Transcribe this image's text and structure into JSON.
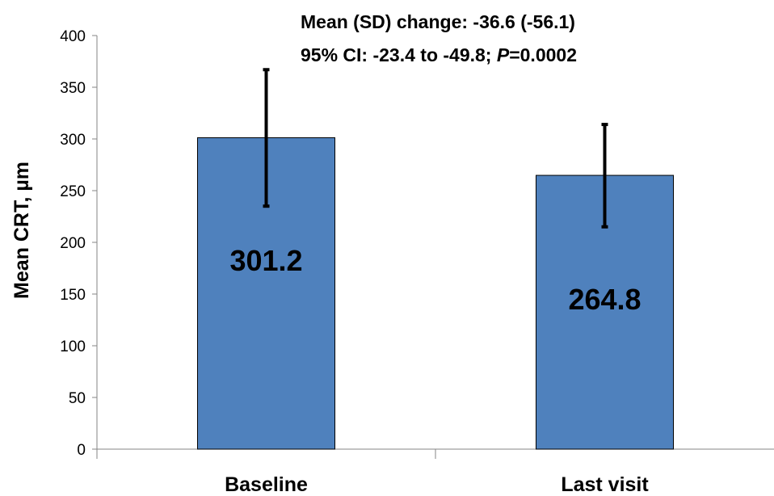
{
  "chart_data": {
    "type": "bar",
    "categories": [
      "Baseline",
      "Last visit"
    ],
    "values": [
      301.2,
      264.8
    ],
    "data_labels": [
      "301.2",
      "264.8"
    ],
    "error_bars": [
      {
        "low": 235,
        "high": 367
      },
      {
        "low": 215,
        "high": 314
      }
    ],
    "ylabel": "Mean CRT, µm",
    "xlabel": "",
    "ylim": [
      0,
      400
    ],
    "yticks": [
      0,
      50,
      100,
      150,
      200,
      250,
      300,
      350,
      400
    ],
    "grid": false,
    "legend": "none",
    "bar_color": "#4f81bd",
    "annotation": {
      "line1": "Mean (SD) change: -36.6 (-56.1)",
      "line2_prefix": "95% CI: -23.4 to -49.8; ",
      "line2_p": "P",
      "line2_suffix": "=0.0002"
    }
  }
}
